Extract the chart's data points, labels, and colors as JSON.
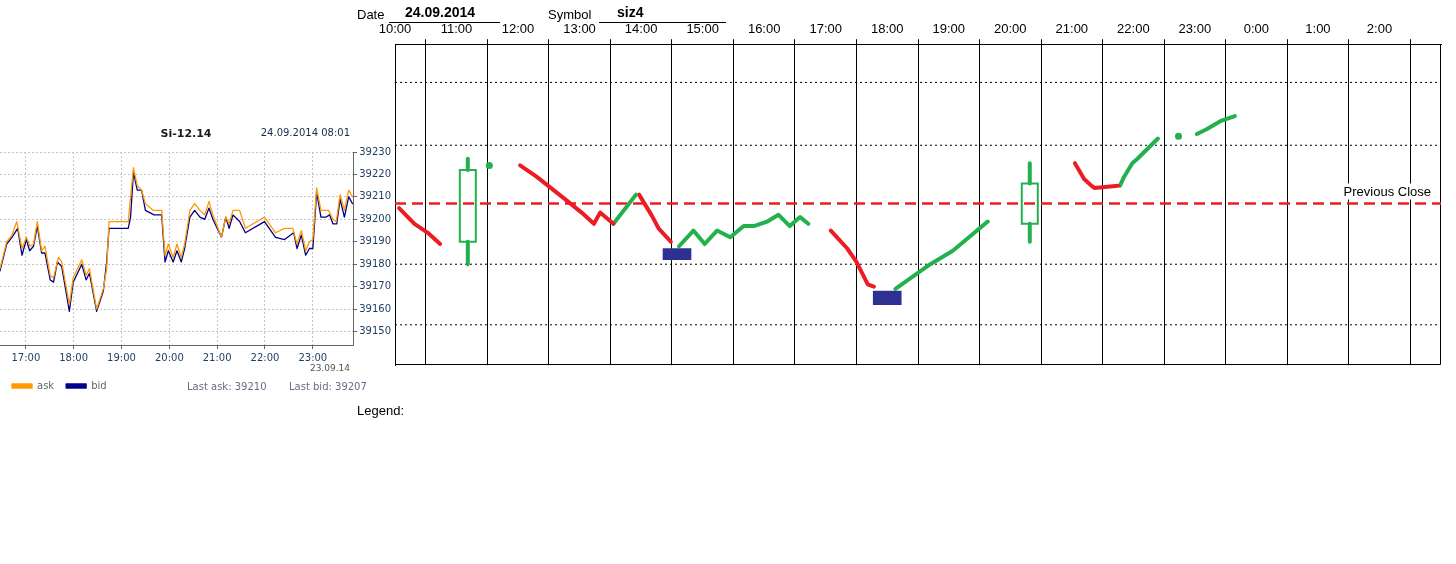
{
  "chart_data": [
    {
      "type": "line",
      "title": "Si-12.14",
      "annotations": [
        "24.09.2014 08:01",
        "23.09.14",
        "Last ask: 39210",
        "Last bid: 39207"
      ],
      "xlim": [
        16.46,
        23.84
      ],
      "xticks": [
        {
          "value": 17,
          "label": "17:00"
        },
        {
          "value": 18,
          "label": "18:00"
        },
        {
          "value": 19,
          "label": "19:00"
        },
        {
          "value": 20,
          "label": "20:00"
        },
        {
          "value": 21,
          "label": "21:00"
        },
        {
          "value": 22,
          "label": "22:00"
        },
        {
          "value": 23,
          "label": "23:00"
        }
      ],
      "ylim": [
        39144,
        39230
      ],
      "yticks": [
        39150,
        39160,
        39170,
        39180,
        39190,
        39200,
        39210,
        39220,
        39230
      ],
      "grid": true,
      "legend": "bottom left",
      "tick_labels": "x",
      "series": [
        {
          "name": "ask",
          "color": "#ff9900",
          "x": [
            16.46,
            16.6,
            16.71,
            16.81,
            16.92,
            17.01,
            17.09,
            17.16,
            17.24,
            17.33,
            17.4,
            17.51,
            17.58,
            17.68,
            17.75,
            17.91,
            17.99,
            18.17,
            18.26,
            18.33,
            18.48,
            18.62,
            18.69,
            18.74,
            19.14,
            19.25,
            19.33,
            19.42,
            19.5,
            19.66,
            19.84,
            19.91,
            19.98,
            20.08,
            20.16,
            20.25,
            20.32,
            20.43,
            20.53,
            20.64,
            20.74,
            20.83,
            20.91,
            21.09,
            21.18,
            21.25,
            21.33,
            21.47,
            21.59,
            21.99,
            22.22,
            22.41,
            22.58,
            22.67,
            22.76,
            22.85,
            22.93,
            23.0,
            23.08,
            23.17,
            23.33,
            23.42,
            23.49,
            23.57,
            23.66,
            23.75,
            23.83
          ],
          "values": [
            39178,
            39190,
            39193,
            39199,
            39187,
            39192,
            39188,
            39189,
            39199,
            39186,
            39188,
            39175,
            39174,
            39183,
            39181,
            39162,
            39174,
            39182,
            39175,
            39178,
            39160,
            39169,
            39178,
            39199,
            39199,
            39223,
            39215,
            39213,
            39207,
            39204,
            39204,
            39184,
            39189,
            39183,
            39189,
            39183,
            39189,
            39204,
            39207,
            39204,
            39202,
            39208,
            39202,
            39192,
            39201,
            39198,
            39204,
            39204,
            39196,
            39201,
            39194,
            39196,
            39196,
            39189,
            39195,
            39186,
            39190,
            39191,
            39214,
            39204,
            39204,
            39200,
            39199,
            39211,
            39204,
            39213,
            39210
          ]
        },
        {
          "name": "bid",
          "color": "#00008b",
          "x": [
            16.46,
            16.6,
            16.71,
            16.83,
            16.92,
            17.01,
            17.08,
            17.16,
            17.24,
            17.33,
            17.4,
            17.51,
            17.58,
            17.66,
            17.75,
            17.91,
            17.99,
            18.17,
            18.26,
            18.33,
            18.48,
            18.62,
            18.69,
            18.74,
            19.14,
            19.19,
            19.25,
            19.33,
            19.42,
            19.5,
            19.68,
            19.84,
            19.91,
            19.98,
            20.08,
            20.16,
            20.25,
            20.32,
            20.43,
            20.53,
            20.64,
            20.74,
            20.83,
            20.91,
            21.09,
            21.18,
            21.25,
            21.33,
            21.47,
            21.59,
            21.99,
            22.22,
            22.41,
            22.6,
            22.67,
            22.76,
            22.85,
            22.93,
            23.0,
            23.08,
            23.17,
            23.28,
            23.35,
            23.42,
            23.5,
            23.57,
            23.66,
            23.75,
            23.83
          ],
          "values": [
            39177,
            39189,
            39192,
            39196,
            39184,
            39191,
            39186,
            39188,
            39197,
            39185,
            39185,
            39173,
            39172,
            39181,
            39179,
            39159,
            39172,
            39180,
            39173,
            39176,
            39159,
            39168,
            39181,
            39196,
            39196,
            39201,
            39221,
            39213,
            39213,
            39204,
            39202,
            39202,
            39181,
            39186,
            39181,
            39186,
            39181,
            39187,
            39201,
            39204,
            39201,
            39200,
            39205,
            39200,
            39192,
            39201,
            39196,
            39202,
            39199,
            39194,
            39199,
            39192,
            39191,
            39194,
            39187,
            39193,
            39184,
            39187,
            39187,
            39212,
            39201,
            39201,
            39202,
            39198,
            39198,
            39209,
            39201,
            39210,
            39207
          ]
        }
      ]
    },
    {
      "type": "line",
      "annotations": [
        "Date",
        "24.09.2014",
        "Symbol",
        "siz4",
        "Legend:"
      ],
      "xlim": [
        "2014-09-24T10:00",
        "2014-09-25T03:00"
      ],
      "xticks": [
        {
          "value": "2014-09-24T10:00",
          "label": "10:00"
        },
        {
          "value": "2014-09-24T11:00",
          "label": "11:00"
        },
        {
          "value": "2014-09-24T12:00",
          "label": "12:00"
        },
        {
          "value": "2014-09-24T13:00",
          "label": "13:00"
        },
        {
          "value": "2014-09-24T14:00",
          "label": "14:00"
        },
        {
          "value": "2014-09-24T15:00",
          "label": "15:00"
        },
        {
          "value": "2014-09-24T16:00",
          "label": "16:00"
        },
        {
          "value": "2014-09-24T17:00",
          "label": "17:00"
        },
        {
          "value": "2014-09-24T18:00",
          "label": "18:00"
        },
        {
          "value": "2014-09-24T19:00",
          "label": "19:00"
        },
        {
          "value": "2014-09-24T20:00",
          "label": "20:00"
        },
        {
          "value": "2014-09-24T21:00",
          "label": "21:00"
        },
        {
          "value": "2014-09-24T22:00",
          "label": "22:00"
        },
        {
          "value": "2014-09-24T23:00",
          "label": "23:00"
        },
        {
          "value": "2014-09-25T00:00",
          "label": "0:00"
        },
        {
          "value": "2014-09-25T01:00",
          "label": "1:00"
        },
        {
          "value": "2014-09-25T02:00",
          "label": "2:00"
        }
      ],
      "ylim": [
        39135,
        39278
      ],
      "yticks": [
        39150,
        39160,
        39170,
        39180,
        39190,
        39200,
        39210,
        39220,
        39230
      ],
      "grid": "x",
      "ref_lines": [
        {
          "axis": "y",
          "value": 39261,
          "color": "#000000",
          "line_style": "dotted"
        },
        {
          "axis": "y",
          "value": 39233,
          "color": "#000000",
          "line_style": "dotted"
        },
        {
          "axis": "y",
          "value": 39180,
          "color": "#000000",
          "line_style": "dotted"
        },
        {
          "axis": "y",
          "value": 39153,
          "color": "#000000",
          "line_style": "dotted"
        },
        {
          "axis": "y",
          "value": 39207,
          "label": "Previous Close",
          "color": "#ed1c24",
          "line_style": "dashed"
        }
      ],
      "series": [
        {
          "color": "#ed1c24",
          "x": [
            "2014-09-24T10:04",
            "2014-09-24T10:19",
            "2014-09-24T10:32",
            "2014-09-24T10:44"
          ],
          "values": [
            39205,
            39198,
            39194,
            39189
          ]
        },
        {
          "type": "candlestick",
          "color": "#22b14c",
          "x": [
            "2014-09-24T11:11",
            "2014-09-24T20:19"
          ],
          "ohlc": [
            [
              39190,
              39227,
              39180,
              39222
            ],
            [
              39198,
              39225,
              39190,
              39216
            ]
          ]
        },
        {
          "type": "scatter",
          "color": "#22b14c",
          "marker": "circle",
          "x": [
            "2014-09-24T11:32",
            "2014-09-24T22:44"
          ],
          "values": [
            39224,
            39237
          ]
        },
        {
          "color": "#ed1c24",
          "x": [
            "2014-09-24T12:02",
            "2014-09-24T12:18",
            "2014-09-24T12:43",
            "2014-09-24T13:02",
            "2014-09-24T13:14",
            "2014-09-24T13:20",
            "2014-09-24T13:33"
          ],
          "values": [
            39224,
            39219,
            39210,
            39203,
            39198,
            39203,
            39198
          ]
        },
        {
          "color": "#22b14c",
          "x": [
            "2014-09-24T13:33",
            "2014-09-24T13:55"
          ],
          "values": [
            39198,
            39211
          ]
        },
        {
          "color": "#ed1c24",
          "x": [
            "2014-09-24T13:58",
            "2014-09-24T14:10",
            "2014-09-24T14:17",
            "2014-09-24T14:29"
          ],
          "values": [
            39211,
            39202,
            39196,
            39190
          ]
        },
        {
          "type": "bar",
          "color": "#2e3192",
          "x": [
            "2014-09-24T14:35",
            "2014-09-24T18:00"
          ],
          "base": [
            39182,
            39162
          ],
          "values": [
            5,
            6
          ]
        },
        {
          "color": "#22b14c",
          "x": [
            "2014-09-24T14:37",
            "2014-09-24T14:51",
            "2014-09-24T15:02",
            "2014-09-24T15:14",
            "2014-09-24T15:27",
            "2014-09-24T15:40",
            "2014-09-24T15:50",
            "2014-09-24T16:03",
            "2014-09-24T16:14",
            "2014-09-24T16:25",
            "2014-09-24T16:35",
            "2014-09-24T16:43"
          ],
          "values": [
            39188,
            39195,
            39189,
            39195,
            39192,
            39197,
            39197,
            39199,
            39202,
            39197,
            39201,
            39198
          ]
        },
        {
          "color": "#ed1c24",
          "x": [
            "2014-09-24T17:05",
            "2014-09-24T17:21",
            "2014-09-24T17:30",
            "2014-09-24T17:41",
            "2014-09-24T17:47"
          ],
          "values": [
            39195,
            39187,
            39181,
            39171,
            39170
          ]
        },
        {
          "color": "#22b14c",
          "x": [
            "2014-09-24T18:08",
            "2014-09-24T18:42",
            "2014-09-24T19:04",
            "2014-09-24T19:38"
          ],
          "values": [
            39169,
            39180,
            39186,
            39199
          ]
        },
        {
          "color": "#ed1c24",
          "x": [
            "2014-09-24T21:03",
            "2014-09-24T21:12",
            "2014-09-24T21:19",
            "2014-09-24T21:22",
            "2014-09-24T21:45"
          ],
          "values": [
            39225,
            39218,
            39215,
            39214,
            39215
          ]
        },
        {
          "color": "#22b14c",
          "x": [
            "2014-09-24T21:47",
            "2014-09-24T21:51",
            "2014-09-24T21:59",
            "2014-09-24T22:04",
            "2014-09-24T22:24"
          ],
          "values": [
            39215,
            39219,
            39225,
            39227,
            39236
          ]
        },
        {
          "color": "#22b14c",
          "x": [
            "2014-09-24T23:02",
            "2014-09-24T23:11",
            "2014-09-24T23:26",
            "2014-09-24T23:39"
          ],
          "values": [
            39238,
            39240,
            39244,
            39246
          ]
        }
      ]
    }
  ]
}
